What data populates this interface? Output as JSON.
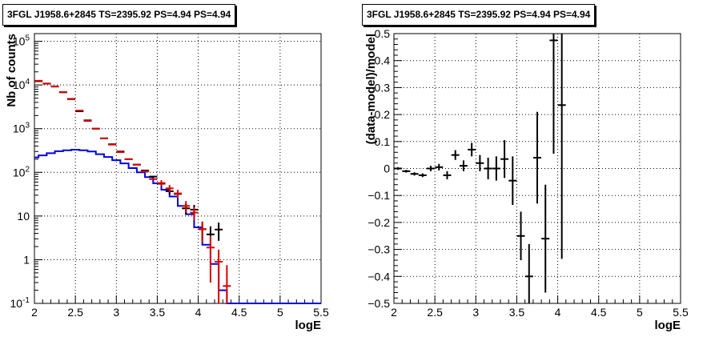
{
  "chart_data": [
    {
      "type": "line",
      "title": "3FGL J1958.6+2845 TS=2395.92 PS=4.94 PS=4.94",
      "xlabel": "logE",
      "ylabel": "Nb of counts",
      "xlim": [
        2,
        5.5
      ],
      "ylim": [
        0.1,
        150000
      ],
      "yscale": "log",
      "grid": true,
      "xticks": [
        "2",
        "2.5",
        "3",
        "3.5",
        "4",
        "4.5",
        "5",
        "5.5"
      ],
      "yticks": [
        "10^{-1}",
        "1",
        "10",
        "10^{2}",
        "10^{3}",
        "10^{4}",
        "10^{5}"
      ],
      "series": [
        {
          "color": "#000000",
          "style": "errorbars",
          "points": [
            {
              "x": 2.05,
              "y": 12200,
              "err": 0
            },
            {
              "x": 2.15,
              "y": 10800,
              "err": 0
            },
            {
              "x": 2.25,
              "y": 9200,
              "err": 0
            },
            {
              "x": 2.35,
              "y": 6800,
              "err": 0
            },
            {
              "x": 2.45,
              "y": 4800,
              "err": 0
            },
            {
              "x": 2.55,
              "y": 2500,
              "err": 0
            },
            {
              "x": 2.65,
              "y": 1550,
              "err": 0
            },
            {
              "x": 2.75,
              "y": 1000,
              "err": 0
            },
            {
              "x": 2.85,
              "y": 600,
              "err": 0
            },
            {
              "x": 2.95,
              "y": 440,
              "err": 0
            },
            {
              "x": 3.05,
              "y": 300,
              "err": 0
            },
            {
              "x": 3.15,
              "y": 200,
              "err": 0
            },
            {
              "x": 3.25,
              "y": 150,
              "err": 0
            },
            {
              "x": 3.35,
              "y": 110,
              "err": 0
            },
            {
              "x": 3.45,
              "y": 80,
              "err": 0
            },
            {
              "x": 3.55,
              "y": 55,
              "err": 8
            },
            {
              "x": 3.65,
              "y": 37,
              "err": 6
            },
            {
              "x": 3.75,
              "y": 32,
              "err": 6
            },
            {
              "x": 3.85,
              "y": 15,
              "err": 4
            },
            {
              "x": 3.95,
              "y": 14,
              "err": 4
            },
            {
              "x": 4.05,
              "y": 5,
              "err": 2.2
            },
            {
              "x": 4.15,
              "y": 3.8,
              "err": 2
            },
            {
              "x": 4.25,
              "y": 4.9,
              "err": 2.2
            }
          ]
        },
        {
          "color": "#dd0000",
          "style": "errorbars",
          "points": [
            {
              "x": 2.05,
              "y": 12500,
              "err": 0
            },
            {
              "x": 2.15,
              "y": 10700,
              "err": 0
            },
            {
              "x": 2.25,
              "y": 9300,
              "err": 0
            },
            {
              "x": 2.35,
              "y": 6900,
              "err": 0
            },
            {
              "x": 2.45,
              "y": 4700,
              "err": 0
            },
            {
              "x": 2.55,
              "y": 2600,
              "err": 0
            },
            {
              "x": 2.65,
              "y": 1500,
              "err": 0
            },
            {
              "x": 2.75,
              "y": 1000,
              "err": 0
            },
            {
              "x": 2.85,
              "y": 600,
              "err": 0
            },
            {
              "x": 2.95,
              "y": 430,
              "err": 0
            },
            {
              "x": 3.05,
              "y": 290,
              "err": 0
            },
            {
              "x": 3.15,
              "y": 200,
              "err": 0
            },
            {
              "x": 3.25,
              "y": 150,
              "err": 0
            },
            {
              "x": 3.35,
              "y": 105,
              "err": 0
            },
            {
              "x": 3.45,
              "y": 70,
              "err": 0
            },
            {
              "x": 3.55,
              "y": 57,
              "err": 9
            },
            {
              "x": 3.65,
              "y": 43,
              "err": 8
            },
            {
              "x": 3.75,
              "y": 33,
              "err": 7
            },
            {
              "x": 3.85,
              "y": 17,
              "err": 5
            },
            {
              "x": 3.95,
              "y": 12,
              "err": 4
            },
            {
              "x": 4.05,
              "y": 5,
              "err": 2.5
            },
            {
              "x": 4.15,
              "y": 1.9,
              "err": 1.6
            },
            {
              "x": 4.25,
              "y": 0.9,
              "err": 0.8
            },
            {
              "x": 4.35,
              "y": 0.25,
              "err": 0.5
            }
          ]
        },
        {
          "color": "#0000dd",
          "style": "step",
          "x": [
            2.0,
            2.05,
            2.15,
            2.25,
            2.35,
            2.45,
            2.55,
            2.65,
            2.75,
            2.85,
            2.95,
            3.05,
            3.15,
            3.25,
            3.35,
            3.45,
            3.55,
            3.65,
            3.75,
            3.85,
            3.95,
            4.05,
            4.15,
            4.25,
            4.35,
            5.5
          ],
          "y": [
            220,
            245,
            275,
            305,
            320,
            330,
            320,
            300,
            260,
            225,
            190,
            160,
            125,
            100,
            78,
            56,
            40,
            28,
            17,
            11,
            5.5,
            2.2,
            0.8,
            0.2,
            0.1,
            0.1
          ]
        }
      ]
    },
    {
      "type": "scatter",
      "title": "3FGL J1958.6+2845 TS=2395.92 PS=4.94 PS=4.94",
      "xlabel": "logE",
      "ylabel": "(data-model)/model",
      "xlim": [
        2,
        5.5
      ],
      "ylim": [
        -0.5,
        0.5
      ],
      "grid": true,
      "xticks": [
        "2",
        "2.5",
        "3",
        "3.5",
        "4",
        "4.5",
        "5",
        "5.5"
      ],
      "yticks": [
        "−0.5",
        "−0.4",
        "−0.3",
        "−0.2",
        "−0.1",
        "0",
        "0.1",
        "0.2",
        "0.3",
        "0.4",
        "0.5"
      ],
      "series": [
        {
          "color": "#000000",
          "points": [
            {
              "x": 2.05,
              "y": 0.0,
              "err": 0.005
            },
            {
              "x": 2.15,
              "y": -0.01,
              "err": 0.005
            },
            {
              "x": 2.25,
              "y": -0.02,
              "err": 0.006
            },
            {
              "x": 2.35,
              "y": -0.025,
              "err": 0.007
            },
            {
              "x": 2.45,
              "y": 0.0,
              "err": 0.01
            },
            {
              "x": 2.55,
              "y": 0.005,
              "err": 0.012
            },
            {
              "x": 2.65,
              "y": -0.025,
              "err": 0.015
            },
            {
              "x": 2.75,
              "y": 0.05,
              "err": 0.018
            },
            {
              "x": 2.85,
              "y": 0.01,
              "err": 0.02
            },
            {
              "x": 2.95,
              "y": 0.07,
              "err": 0.025
            },
            {
              "x": 3.05,
              "y": 0.02,
              "err": 0.03
            },
            {
              "x": 3.15,
              "y": 0.0,
              "err": 0.04
            },
            {
              "x": 3.25,
              "y": 0.0,
              "err": 0.045
            },
            {
              "x": 3.35,
              "y": 0.035,
              "err": 0.07
            },
            {
              "x": 3.45,
              "y": -0.045,
              "err": 0.09
            },
            {
              "x": 3.55,
              "y": -0.25,
              "err": 0.09
            },
            {
              "x": 3.65,
              "y": -0.4,
              "err": 0.12
            },
            {
              "x": 3.75,
              "y": 0.04,
              "err": 0.17
            },
            {
              "x": 3.85,
              "y": -0.26,
              "err": 0.2
            },
            {
              "x": 3.95,
              "y": 0.475,
              "err": 0.42
            },
            {
              "x": 4.05,
              "y": 0.235,
              "err": 0.57
            }
          ]
        }
      ]
    }
  ]
}
